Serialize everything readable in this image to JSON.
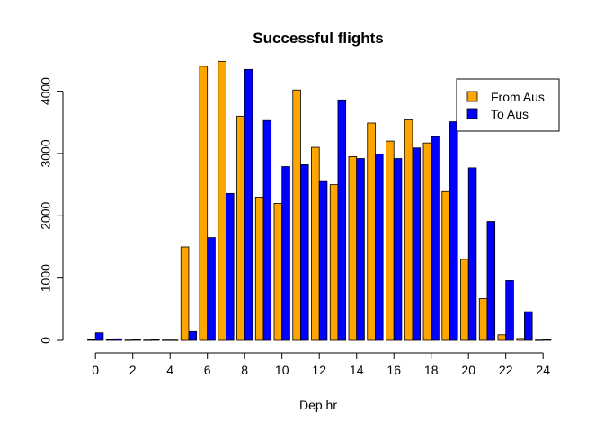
{
  "chart_data": {
    "type": "bar",
    "title": "Successful flights",
    "xlabel": "Dep hr",
    "ylabel": "",
    "categories": [
      0,
      1,
      2,
      3,
      4,
      5,
      6,
      7,
      8,
      9,
      10,
      11,
      12,
      13,
      14,
      15,
      16,
      17,
      18,
      19,
      20,
      21,
      22,
      23,
      24
    ],
    "x_tick_labels": [
      "0",
      "2",
      "4",
      "6",
      "8",
      "10",
      "12",
      "14",
      "16",
      "18",
      "20",
      "22",
      "24"
    ],
    "y_ticks": [
      0,
      1000,
      2000,
      3000,
      4000
    ],
    "ylim": [
      0,
      4600
    ],
    "grid": false,
    "legend_position": "top-right",
    "series": [
      {
        "name": "From Aus",
        "color": "#FFA500",
        "values": [
          10,
          10,
          5,
          5,
          5,
          1500,
          4400,
          4480,
          3600,
          2300,
          2200,
          4020,
          3100,
          2500,
          2950,
          3490,
          3200,
          3540,
          3170,
          2390,
          1300,
          670,
          90,
          30,
          5
        ]
      },
      {
        "name": "To Aus",
        "color": "#0000FF",
        "values": [
          120,
          25,
          10,
          10,
          5,
          140,
          1650,
          2360,
          4350,
          3530,
          2790,
          2820,
          2550,
          3860,
          2920,
          2990,
          2920,
          3090,
          3270,
          3510,
          2770,
          1910,
          960,
          460,
          10
        ]
      }
    ]
  }
}
